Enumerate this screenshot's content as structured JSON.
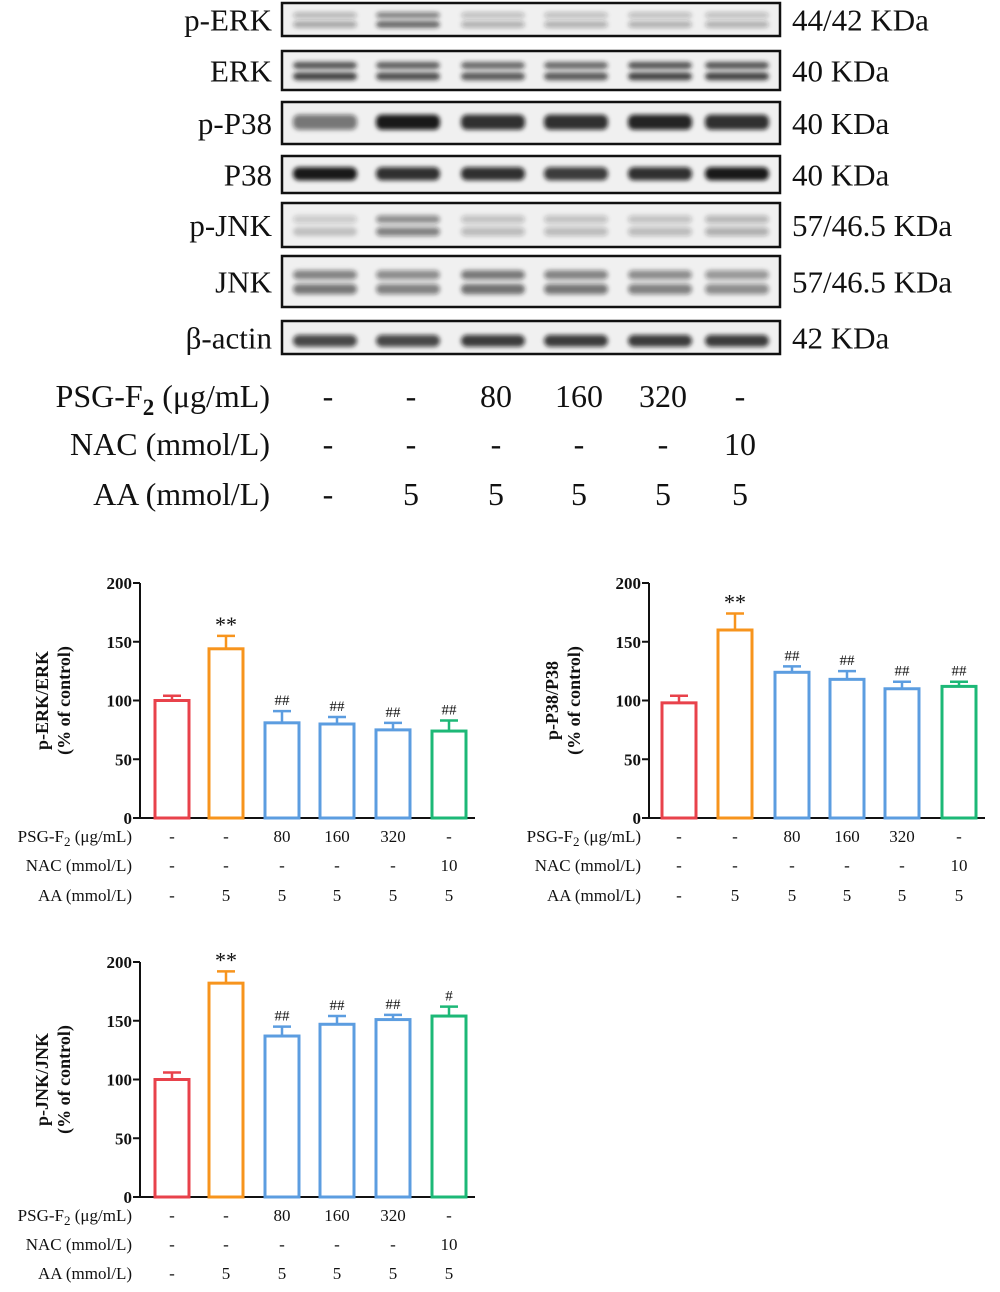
{
  "blots": [
    {
      "label": "p-ERK",
      "mw": "44/42 KDa",
      "pattern": "doublet-light",
      "intensity": [
        0.35,
        0.65,
        0.3,
        0.3,
        0.3,
        0.3
      ]
    },
    {
      "label": "ERK",
      "mw": "40 KDa",
      "pattern": "doublet",
      "intensity": [
        0.8,
        0.75,
        0.7,
        0.7,
        0.8,
        0.8
      ]
    },
    {
      "label": "p-P38",
      "mw": "40 KDa",
      "pattern": "single",
      "intensity": [
        0.55,
        0.95,
        0.85,
        0.85,
        0.9,
        0.85
      ]
    },
    {
      "label": "P38",
      "mw": "40 KDa",
      "pattern": "single",
      "intensity": [
        0.95,
        0.85,
        0.85,
        0.8,
        0.85,
        0.95
      ]
    },
    {
      "label": "p-JNK",
      "mw": "57/46.5 KDa",
      "pattern": "faint",
      "intensity": [
        0.2,
        0.5,
        0.25,
        0.25,
        0.25,
        0.3
      ]
    },
    {
      "label": "JNK",
      "mw": "57/46.5 KDa",
      "pattern": "doublet",
      "intensity": [
        0.55,
        0.5,
        0.6,
        0.55,
        0.5,
        0.45
      ]
    },
    {
      "label": "β-actin",
      "mw": "42 KDa",
      "pattern": "single-low",
      "intensity": [
        0.75,
        0.75,
        0.8,
        0.8,
        0.8,
        0.8
      ]
    }
  ],
  "treatment_rows": [
    {
      "name": "PSG-F",
      "sub": "2",
      "unit": " (μg/mL)",
      "values": [
        "-",
        "-",
        "80",
        "160",
        "320",
        "-"
      ]
    },
    {
      "name": "NAC",
      "sub": "",
      "unit": " (mmol/L)",
      "values": [
        "-",
        "-",
        "-",
        "-",
        "-",
        "10"
      ]
    },
    {
      "name": "AA",
      "sub": "",
      "unit": " (mmol/L)",
      "values": [
        "-",
        "5",
        "5",
        "5",
        "5",
        "5"
      ]
    }
  ],
  "bar_colors": [
    "#e8424b",
    "#f7941d",
    "#5c9de0",
    "#5c9de0",
    "#5c9de0",
    "#1db877"
  ],
  "chart_data": [
    {
      "type": "bar",
      "ylabel": "p-ERK/ERK",
      "ylabel2": "(% of control)",
      "ylim": [
        0,
        200
      ],
      "yticks": [
        0,
        50,
        100,
        150,
        200
      ],
      "values": [
        100,
        144,
        81,
        80,
        75,
        74
      ],
      "errors": [
        4,
        11,
        10,
        6,
        6,
        9
      ],
      "annotations": [
        "",
        "**",
        "##",
        "##",
        "##",
        "##"
      ]
    },
    {
      "type": "bar",
      "ylabel": "p-P38/P38",
      "ylabel2": "(% of control)",
      "ylim": [
        0,
        200
      ],
      "yticks": [
        0,
        50,
        100,
        150,
        200
      ],
      "values": [
        98,
        160,
        124,
        118,
        110,
        112
      ],
      "errors": [
        6,
        14,
        5,
        7,
        6,
        4
      ],
      "annotations": [
        "",
        "**",
        "##",
        "##",
        "##",
        "##"
      ]
    },
    {
      "type": "bar",
      "ylabel": "p-JNK/JNK",
      "ylabel2": "(% of control)",
      "ylim": [
        0,
        200
      ],
      "yticks": [
        0,
        50,
        100,
        150,
        200
      ],
      "values": [
        100,
        182,
        137,
        147,
        151,
        154
      ],
      "errors": [
        6,
        10,
        8,
        7,
        4,
        8
      ],
      "annotations": [
        "",
        "**",
        "##",
        "##",
        "##",
        "#"
      ]
    }
  ]
}
